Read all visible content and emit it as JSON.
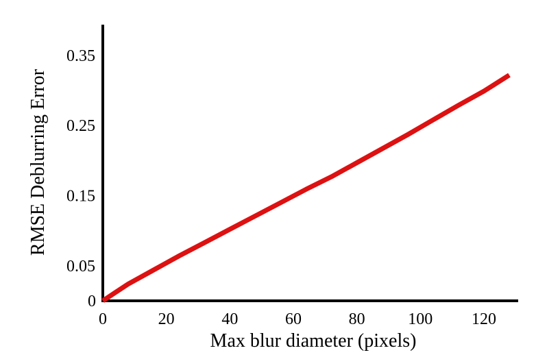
{
  "chart_data": {
    "type": "line",
    "title": "",
    "xlabel": "Max blur diameter (pixels)",
    "ylabel": "RMSE Deblurring Error",
    "xlim": [
      0,
      128
    ],
    "ylim": [
      0,
      0.39
    ],
    "xticks": [
      0,
      20,
      40,
      60,
      80,
      100,
      120
    ],
    "xtick_labels": [
      "0",
      "20",
      "40",
      "60",
      "80",
      "100",
      "120"
    ],
    "yticks": [
      0,
      0.05,
      0.15,
      0.25,
      0.35
    ],
    "ytick_labels": [
      "0",
      "0.05",
      "0.15",
      "0.25",
      "0.35"
    ],
    "grid": false,
    "series": [
      {
        "color": "#dd1111",
        "x": [
          0,
          4,
          8,
          16,
          24,
          32,
          40,
          48,
          56,
          64,
          72,
          80,
          88,
          96,
          104,
          112,
          120,
          128
        ],
        "y": [
          0,
          0.012,
          0.024,
          0.044,
          0.064,
          0.083,
          0.102,
          0.121,
          0.14,
          0.159,
          0.177,
          0.197,
          0.217,
          0.237,
          0.258,
          0.279,
          0.299,
          0.322
        ]
      }
    ]
  }
}
